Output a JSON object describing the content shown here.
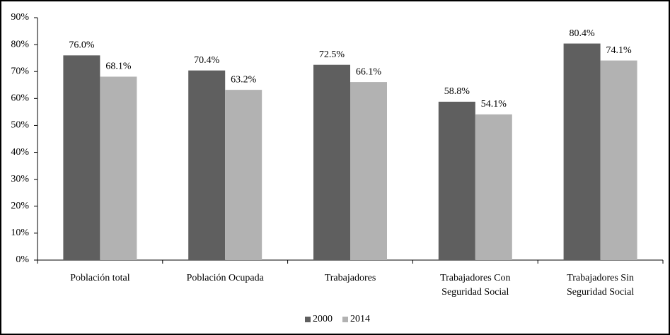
{
  "chart_data": {
    "type": "bar",
    "categories": [
      "Población total",
      "Población Ocupada",
      "Trabajadores",
      "Trabajadores Con Seguridad Social",
      "Trabajadores Sin Seguridad Social"
    ],
    "series": [
      {
        "name": "2000",
        "color": "#5f5f5f",
        "values": [
          76.0,
          70.4,
          72.5,
          58.8,
          80.4
        ],
        "value_labels": [
          "76.0%",
          "70.4%",
          "72.5%",
          "58.8%",
          "80.4%"
        ]
      },
      {
        "name": "2014",
        "color": "#b2b2b2",
        "values": [
          68.1,
          63.2,
          66.1,
          54.1,
          74.1
        ],
        "value_labels": [
          "68.1%",
          "63.2%",
          "66.1%",
          "54.1%",
          "74.1%"
        ]
      }
    ],
    "ylim": [
      0,
      90
    ],
    "yticks": [
      {
        "value": 0,
        "label": "0%"
      },
      {
        "value": 10,
        "label": "10%"
      },
      {
        "value": 20,
        "label": "20%"
      },
      {
        "value": 30,
        "label": "30%"
      },
      {
        "value": 40,
        "label": "40%"
      },
      {
        "value": 50,
        "label": "50%"
      },
      {
        "value": 60,
        "label": "60%"
      },
      {
        "value": 70,
        "label": "70%"
      },
      {
        "value": 80,
        "label": "80%"
      },
      {
        "value": 90,
        "label": "90%"
      }
    ],
    "grid": false,
    "legend": "bottom"
  }
}
